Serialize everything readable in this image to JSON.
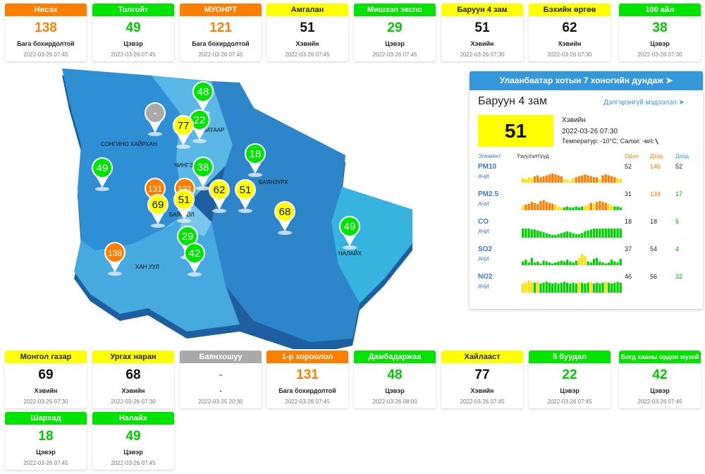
{
  "colors": {
    "good": "#00e400",
    "moderate": "#ffff00",
    "sensitive": "#ff7e00",
    "none": "#aaaaaa"
  },
  "top_cards": [
    {
      "name": "Нисэх",
      "value": "138",
      "level": "Бага бохирдолтой",
      "time": "2022-03-26 07:45",
      "status": "sensitive"
    },
    {
      "name": "Толгойт",
      "value": "49",
      "level": "Цэвэр",
      "time": "2022-03-26 07:45",
      "status": "good"
    },
    {
      "name": "МУОНРТ",
      "value": "121",
      "level": "Бага бохирдолтой",
      "time": "2022-03-26 07:45",
      "status": "sensitive"
    },
    {
      "name": "Амгалан",
      "value": "51",
      "level": "Хэвийн",
      "time": "2022-03-26 07:45",
      "status": "moderate"
    },
    {
      "name": "Мишээл экспо",
      "value": "29",
      "level": "Цэвэр",
      "time": "2022-03-26 07:45",
      "status": "good"
    },
    {
      "name": "Баруун 4 зам",
      "value": "51",
      "level": "Хэвийн",
      "time": "2022-03-26 07:30",
      "status": "moderate"
    },
    {
      "name": "Бэхийн өргөө",
      "value": "62",
      "level": "Хэвийн",
      "time": "2022-03-26 07:30",
      "status": "moderate"
    },
    {
      "name": "100 айл",
      "value": "38",
      "level": "Цэвэр",
      "time": "2022-03-26 07:30",
      "status": "good"
    }
  ],
  "bottom_cards": [
    {
      "name": "Монгол газар",
      "value": "69",
      "level": "Хэвийн",
      "time": "2022-03-26 07:30",
      "status": "moderate"
    },
    {
      "name": "Ургах наран",
      "value": "68",
      "level": "Хэвийн",
      "time": "2022-03-26 07:30",
      "status": "moderate"
    },
    {
      "name": "Баянхошуу",
      "value": "-",
      "level": "-",
      "time": "2022-03-25 20:30",
      "status": "none"
    },
    {
      "name": "1-р хороолол",
      "value": "131",
      "level": "Бага бохирдолтой",
      "time": "2022-03-26 07:45",
      "status": "sensitive"
    },
    {
      "name": "Дамбадаржаа",
      "value": "48",
      "level": "Цэвэр",
      "time": "2022-03-26 08:00",
      "status": "good"
    },
    {
      "name": "Хайлааст",
      "value": "77",
      "level": "Хэвийн",
      "time": "2022-03-26 07:45",
      "status": "moderate"
    },
    {
      "name": "5 буудал",
      "value": "22",
      "level": "Цэвэр",
      "time": "2022-03-26 07:45",
      "status": "good"
    },
    {
      "name": "Богд хааны ордон музей",
      "value": "42",
      "level": "Цэвэр",
      "time": "2022-03-26 07:45",
      "status": "good"
    },
    {
      "name": "Шархад",
      "value": "18",
      "level": "Цэвэр",
      "time": "2022-03-26 07:45",
      "status": "good"
    },
    {
      "name": "Налайх",
      "value": "49",
      "level": "Цэвэр",
      "time": "2022-03-26 07:45",
      "status": "good"
    }
  ],
  "map": {
    "districts": [
      "СОНГИНО ХАЙРХАН",
      "БАТААР",
      "ЧИНГЭ",
      "БАЯНЗҮРХ",
      "БАЯН ОЛ",
      "ХАН УУЛ",
      "НАЛАЙХ"
    ],
    "pins": [
      {
        "value": "-",
        "status": "none"
      },
      {
        "value": "48",
        "status": "good"
      },
      {
        "value": "22",
        "status": "good"
      },
      {
        "value": "77",
        "status": "moderate"
      },
      {
        "value": "18",
        "status": "good"
      },
      {
        "value": "49",
        "status": "good"
      },
      {
        "value": "38",
        "status": "good"
      },
      {
        "value": "131",
        "status": "sensitive"
      },
      {
        "value": "121",
        "status": "sensitive"
      },
      {
        "value": "51",
        "status": "moderate"
      },
      {
        "value": "69",
        "status": "moderate"
      },
      {
        "value": "62",
        "status": "moderate"
      },
      {
        "value": "51",
        "status": "moderate"
      },
      {
        "value": "68",
        "status": "moderate"
      },
      {
        "value": "29",
        "status": "good"
      },
      {
        "value": "42",
        "status": "good"
      },
      {
        "value": "138",
        "status": "sensitive"
      },
      {
        "value": "49",
        "status": "good"
      }
    ]
  },
  "panel": {
    "header": "Улаанбаатар хотын 7 хоногийн дундаж",
    "station": "Баруун 4 зам",
    "more_link": "Дэлгэрэнгүй мэдээлэл",
    "aqi": "51",
    "status_text": "Хэвийн",
    "time": "2022-03-26 07:30",
    "weather": "Температур: -10°C; Салхи:  -м/с",
    "col_element": "Элемент",
    "col_indicators": "Үзүүлэлтүүд",
    "col_current": "Одоо",
    "col_max": "Дээд",
    "col_min": "Доод",
    "pollutants": [
      {
        "name": "PM10",
        "unit": "АЧИ",
        "current": "52",
        "max": "146",
        "min": "52",
        "bars": [
          5,
          4,
          6,
          5,
          7,
          8,
          6,
          7,
          8,
          9,
          10,
          9,
          8,
          7,
          4,
          3,
          2,
          5,
          6,
          7,
          8,
          9,
          8,
          7,
          6,
          6,
          4,
          8,
          9,
          8,
          7,
          6,
          5,
          4
        ],
        "colors": [
          "y",
          "y",
          "y",
          "y",
          "o",
          "o",
          "o",
          "o",
          "o",
          "o",
          "o",
          "o",
          "o",
          "o",
          "y",
          "y",
          "y",
          "y",
          "o",
          "o",
          "o",
          "o",
          "o",
          "o",
          "o",
          "o",
          "y",
          "o",
          "o",
          "o",
          "o",
          "o",
          "y",
          "y"
        ]
      },
      {
        "name": "PM2.5",
        "unit": "АЧИ",
        "current": "31",
        "max": "134",
        "min": "17",
        "bars": [
          5,
          6,
          7,
          9,
          8,
          7,
          10,
          11,
          9,
          8,
          7,
          6,
          4,
          3,
          3,
          4,
          3,
          3,
          4,
          3,
          4,
          5,
          6,
          8,
          7,
          9,
          10,
          9,
          8,
          7,
          5,
          4,
          4,
          3
        ],
        "colors": [
          "y",
          "o",
          "o",
          "o",
          "o",
          "o",
          "o",
          "o",
          "o",
          "o",
          "o",
          "y",
          "y",
          "y",
          "g",
          "g",
          "g",
          "g",
          "g",
          "g",
          "g",
          "y",
          "y",
          "o",
          "y",
          "o",
          "o",
          "o",
          "o",
          "y",
          "y",
          "g",
          "g",
          "g"
        ]
      },
      {
        "name": "CO",
        "unit": "АЧИ",
        "current": "18",
        "max": "18",
        "min": "5",
        "bars": [
          10,
          10,
          10,
          9,
          9,
          8,
          7,
          6,
          5,
          4,
          3,
          3,
          4,
          5,
          6,
          7,
          6,
          5,
          4,
          4,
          5,
          7,
          8,
          9,
          10,
          10,
          10,
          10,
          10,
          10,
          10,
          10,
          10,
          10
        ],
        "colors": [
          "g",
          "g",
          "g",
          "g",
          "g",
          "g",
          "g",
          "g",
          "g",
          "g",
          "g",
          "g",
          "g",
          "g",
          "g",
          "g",
          "g",
          "g",
          "g",
          "g",
          "g",
          "g",
          "g",
          "g",
          "g",
          "g",
          "g",
          "g",
          "g",
          "g",
          "g",
          "g",
          "g",
          "g"
        ]
      },
      {
        "name": "SO2",
        "unit": "АЧИ",
        "current": "37",
        "max": "54",
        "min": "4",
        "bars": [
          4,
          6,
          3,
          8,
          3,
          4,
          2,
          5,
          4,
          3,
          2,
          3,
          4,
          5,
          4,
          6,
          4,
          3,
          5,
          8,
          12,
          10,
          4,
          3,
          7,
          8,
          4,
          3,
          2,
          3,
          6,
          4,
          3,
          7
        ],
        "colors": [
          "g",
          "g",
          "g",
          "g",
          "g",
          "g",
          "g",
          "g",
          "g",
          "g",
          "g",
          "g",
          "g",
          "g",
          "g",
          "g",
          "g",
          "g",
          "g",
          "y",
          "y",
          "y",
          "g",
          "g",
          "g",
          "g",
          "g",
          "g",
          "g",
          "g",
          "g",
          "g",
          "g",
          "g"
        ]
      },
      {
        "name": "NO2",
        "unit": "АЧИ",
        "current": "46",
        "max": "56",
        "min": "32",
        "bars": [
          10,
          11,
          13,
          12,
          11,
          12,
          10,
          11,
          12,
          11,
          10,
          11,
          10,
          11,
          12,
          11,
          10,
          11,
          10,
          12,
          11,
          10,
          11,
          12,
          10,
          11,
          10,
          11,
          12,
          11,
          10,
          11,
          12,
          11
        ],
        "colors": [
          "y",
          "y",
          "y",
          "y",
          "g",
          "y",
          "g",
          "g",
          "g",
          "g",
          "g",
          "g",
          "g",
          "g",
          "g",
          "g",
          "g",
          "g",
          "g",
          "y",
          "g",
          "g",
          "g",
          "y",
          "g",
          "g",
          "g",
          "g",
          "y",
          "g",
          "g",
          "g",
          "g",
          "g"
        ]
      }
    ]
  }
}
